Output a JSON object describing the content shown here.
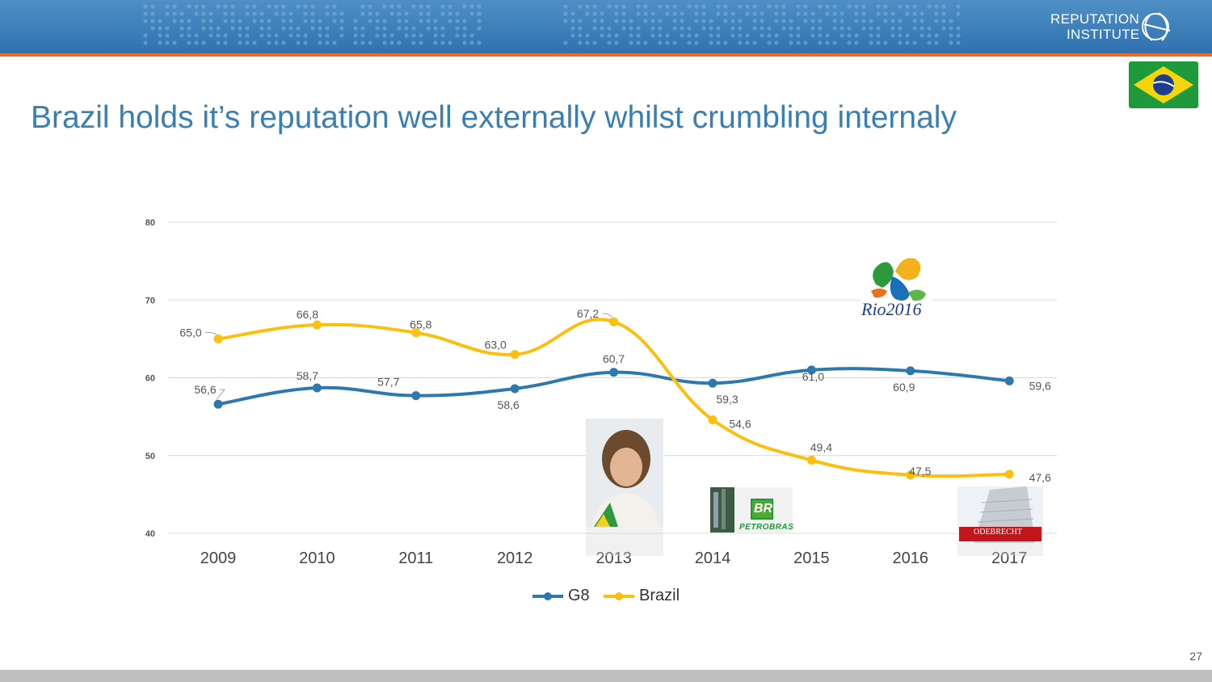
{
  "header": {
    "logo_line1": "REPUTATION",
    "logo_line2": "INSTITUTE"
  },
  "title": "Brazil holds it’s reputation well externally whilst crumbling internaly",
  "page_number": "27",
  "colors": {
    "header_blue": "#3f80bd",
    "accent_orange": "#e46c2a",
    "title_blue": "#3a7fb2",
    "g8_series": "#2e78b0",
    "brazil_series": "#fbbf0f",
    "grid": "#d9d9d9"
  },
  "images": {
    "flag": "brazil-flag",
    "rio2016_label": "Rio2016",
    "petrobras_label": "PETROBRAS",
    "petrobras_mark": "BR",
    "odebrecht_label": "ODEBRECHT",
    "president_photo": "portrait-photo"
  },
  "chart_data": {
    "type": "line",
    "categories": [
      "2009",
      "2010",
      "2011",
      "2012",
      "2013",
      "2014",
      "2015",
      "2016",
      "2017"
    ],
    "ylim": [
      40,
      80
    ],
    "yticks": [
      40,
      50,
      60,
      70,
      80
    ],
    "grid": true,
    "smooth": true,
    "legend_position": "bottom",
    "series": [
      {
        "name": "G8",
        "color": "#2e78b0",
        "values": [
          56.6,
          58.7,
          57.7,
          58.6,
          60.7,
          59.3,
          61.0,
          60.9,
          59.6
        ],
        "labels": [
          "56,6",
          "58,7",
          "57,7",
          "58,6",
          "60,7",
          "59,3",
          "61,0",
          "60,9",
          "59,6"
        ]
      },
      {
        "name": "Brazil",
        "color": "#fbbf0f",
        "values": [
          65.0,
          66.8,
          65.8,
          63.0,
          67.2,
          54.6,
          49.4,
          47.5,
          47.6
        ],
        "labels": [
          "65,0",
          "66,8",
          "65,8",
          "63,0",
          "67,2",
          "54,6",
          "49,4",
          "47,5",
          "47,6"
        ]
      }
    ]
  }
}
